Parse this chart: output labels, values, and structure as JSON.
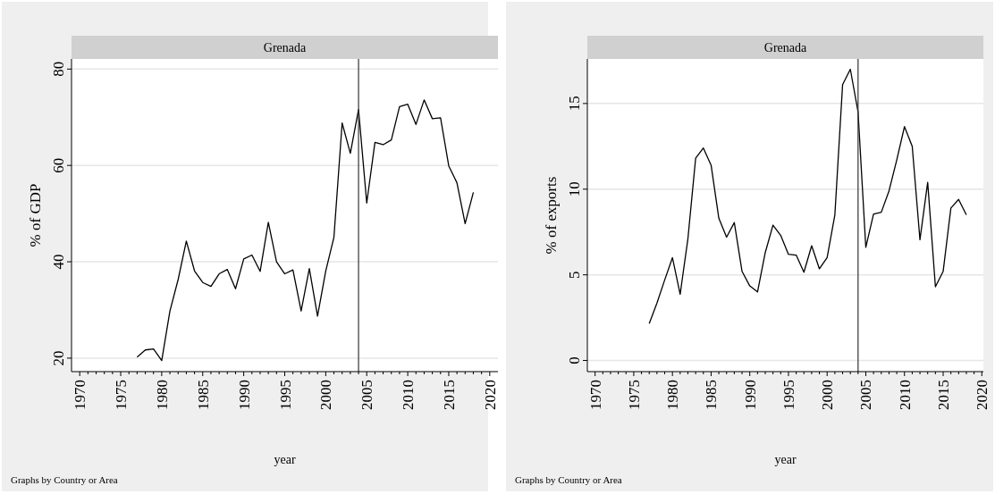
{
  "chart_data": [
    {
      "type": "line",
      "title": "Grenada",
      "xlabel": "year",
      "ylabel": "% of GDP",
      "annotations": [
        "Graphs by Country or Area"
      ],
      "x": [
        1977,
        1978,
        1979,
        1980,
        1981,
        1982,
        1983,
        1984,
        1985,
        1986,
        1987,
        1988,
        1989,
        1990,
        1991,
        1992,
        1993,
        1994,
        1995,
        1996,
        1997,
        1998,
        1999,
        2000,
        2001,
        2002,
        2003,
        2004,
        2005,
        2006,
        2007,
        2008,
        2009,
        2010,
        2011,
        2012,
        2013,
        2014,
        2015,
        2016,
        2017,
        2018
      ],
      "series": [
        {
          "color": "#000000",
          "values": [
            20.2,
            21.7,
            21.9,
            19.5,
            29.8,
            36.3,
            44.3,
            38.1,
            35.7,
            34.9,
            37.5,
            38.4,
            34.4,
            40.6,
            41.4,
            38.0,
            48.2,
            40.0,
            37.5,
            38.3,
            29.8,
            38.6,
            28.7,
            38.1,
            45.1,
            68.8,
            62.5,
            71.6,
            52.2,
            64.8,
            64.3,
            65.3,
            72.2,
            72.7,
            68.5,
            73.6,
            69.7,
            69.9,
            59.9,
            56.4,
            47.9,
            54.4
          ]
        }
      ],
      "xlim": [
        1969,
        2021
      ],
      "ylim": [
        17.2,
        82.1
      ],
      "yticks": [
        20,
        40,
        60,
        80
      ],
      "xticks": [
        1970,
        {
          "value": 1971,
          "label": null
        },
        {
          "value": 1972,
          "label": null
        },
        {
          "value": 1973,
          "label": null
        },
        {
          "value": 1974,
          "label": null
        },
        1975,
        {
          "value": 1976,
          "label": null
        },
        {
          "value": 1977,
          "label": null
        },
        {
          "value": 1978,
          "label": null
        },
        {
          "value": 1979,
          "label": null
        },
        1980,
        {
          "value": 1981,
          "label": null
        },
        {
          "value": 1982,
          "label": null
        },
        {
          "value": 1983,
          "label": null
        },
        {
          "value": 1984,
          "label": null
        },
        1985,
        {
          "value": 1986,
          "label": null
        },
        {
          "value": 1987,
          "label": null
        },
        {
          "value": 1988,
          "label": null
        },
        {
          "value": 1989,
          "label": null
        },
        1990,
        {
          "value": 1991,
          "label": null
        },
        {
          "value": 1992,
          "label": null
        },
        {
          "value": 1993,
          "label": null
        },
        {
          "value": 1994,
          "label": null
        },
        1995,
        {
          "value": 1996,
          "label": null
        },
        {
          "value": 1997,
          "label": null
        },
        {
          "value": 1998,
          "label": null
        },
        {
          "value": 1999,
          "label": null
        },
        2000,
        {
          "value": 2001,
          "label": null
        },
        {
          "value": 2002,
          "label": null
        },
        {
          "value": 2003,
          "label": null
        },
        {
          "value": 2004,
          "label": null
        },
        2005,
        {
          "value": 2006,
          "label": null
        },
        {
          "value": 2007,
          "label": null
        },
        {
          "value": 2008,
          "label": null
        },
        {
          "value": 2009,
          "label": null
        },
        2010,
        {
          "value": 2011,
          "label": null
        },
        {
          "value": 2012,
          "label": null
        },
        {
          "value": 2013,
          "label": null
        },
        {
          "value": 2014,
          "label": null
        },
        2015,
        {
          "value": 2016,
          "label": null
        },
        {
          "value": 2017,
          "label": null
        },
        {
          "value": 2018,
          "label": null
        },
        {
          "value": 2019,
          "label": null
        },
        2020
      ],
      "ref_lines": [
        {
          "axis": "x",
          "value": 2004,
          "color": "#333333"
        }
      ],
      "grid": "y",
      "marker": "none",
      "line_style": "solid"
    },
    {
      "type": "line",
      "title": "Grenada",
      "xlabel": "year",
      "ylabel": "% of exports",
      "annotations": [
        "Graphs by Country or Area"
      ],
      "x": [
        1977,
        1978,
        1979,
        1980,
        1981,
        1982,
        1983,
        1984,
        1985,
        1986,
        1987,
        1988,
        1989,
        1990,
        1991,
        1992,
        1993,
        1994,
        1995,
        1996,
        1997,
        1998,
        1999,
        2000,
        2001,
        2002,
        2003,
        2004,
        2005,
        2006,
        2007,
        2008,
        2009,
        2010,
        2011,
        2012,
        2013,
        2014,
        2015,
        2016,
        2017,
        2018
      ],
      "series": [
        {
          "color": "#000000",
          "values": [
            2.15,
            3.35,
            4.7,
            6.0,
            3.87,
            7.1,
            11.8,
            12.4,
            11.4,
            8.3,
            7.2,
            8.05,
            5.2,
            4.35,
            4.0,
            6.3,
            7.9,
            7.3,
            6.2,
            6.15,
            5.15,
            6.7,
            5.35,
            6.0,
            8.5,
            16.1,
            17.0,
            14.5,
            6.6,
            8.55,
            8.65,
            9.9,
            11.7,
            13.65,
            12.5,
            7.05,
            10.4,
            4.3,
            5.2,
            8.9,
            9.4,
            8.5
          ]
        }
      ],
      "xlim": [
        1969,
        2020.2
      ],
      "ylim": [
        -0.65,
        17.6
      ],
      "yticks": [
        0,
        5,
        10,
        15
      ],
      "xticks": [
        1970,
        {
          "value": 1971,
          "label": null
        },
        {
          "value": 1972,
          "label": null
        },
        {
          "value": 1973,
          "label": null
        },
        {
          "value": 1974,
          "label": null
        },
        1975,
        {
          "value": 1976,
          "label": null
        },
        {
          "value": 1977,
          "label": null
        },
        {
          "value": 1978,
          "label": null
        },
        {
          "value": 1979,
          "label": null
        },
        1980,
        {
          "value": 1981,
          "label": null
        },
        {
          "value": 1982,
          "label": null
        },
        {
          "value": 1983,
          "label": null
        },
        {
          "value": 1984,
          "label": null
        },
        1985,
        {
          "value": 1986,
          "label": null
        },
        {
          "value": 1987,
          "label": null
        },
        {
          "value": 1988,
          "label": null
        },
        {
          "value": 1989,
          "label": null
        },
        1990,
        {
          "value": 1991,
          "label": null
        },
        {
          "value": 1992,
          "label": null
        },
        {
          "value": 1993,
          "label": null
        },
        {
          "value": 1994,
          "label": null
        },
        1995,
        {
          "value": 1996,
          "label": null
        },
        {
          "value": 1997,
          "label": null
        },
        {
          "value": 1998,
          "label": null
        },
        {
          "value": 1999,
          "label": null
        },
        2000,
        {
          "value": 2001,
          "label": null
        },
        {
          "value": 2002,
          "label": null
        },
        {
          "value": 2003,
          "label": null
        },
        {
          "value": 2004,
          "label": null
        },
        2005,
        {
          "value": 2006,
          "label": null
        },
        {
          "value": 2007,
          "label": null
        },
        {
          "value": 2008,
          "label": null
        },
        {
          "value": 2009,
          "label": null
        },
        2010,
        {
          "value": 2011,
          "label": null
        },
        {
          "value": 2012,
          "label": null
        },
        {
          "value": 2013,
          "label": null
        },
        {
          "value": 2014,
          "label": null
        },
        2015,
        {
          "value": 2016,
          "label": null
        },
        {
          "value": 2017,
          "label": null
        },
        {
          "value": 2018,
          "label": null
        },
        {
          "value": 2019,
          "label": null
        },
        2020
      ],
      "ref_lines": [
        {
          "axis": "x",
          "value": 2004,
          "color": "#333333"
        }
      ],
      "grid": "y",
      "marker": "none",
      "line_style": "solid"
    }
  ]
}
